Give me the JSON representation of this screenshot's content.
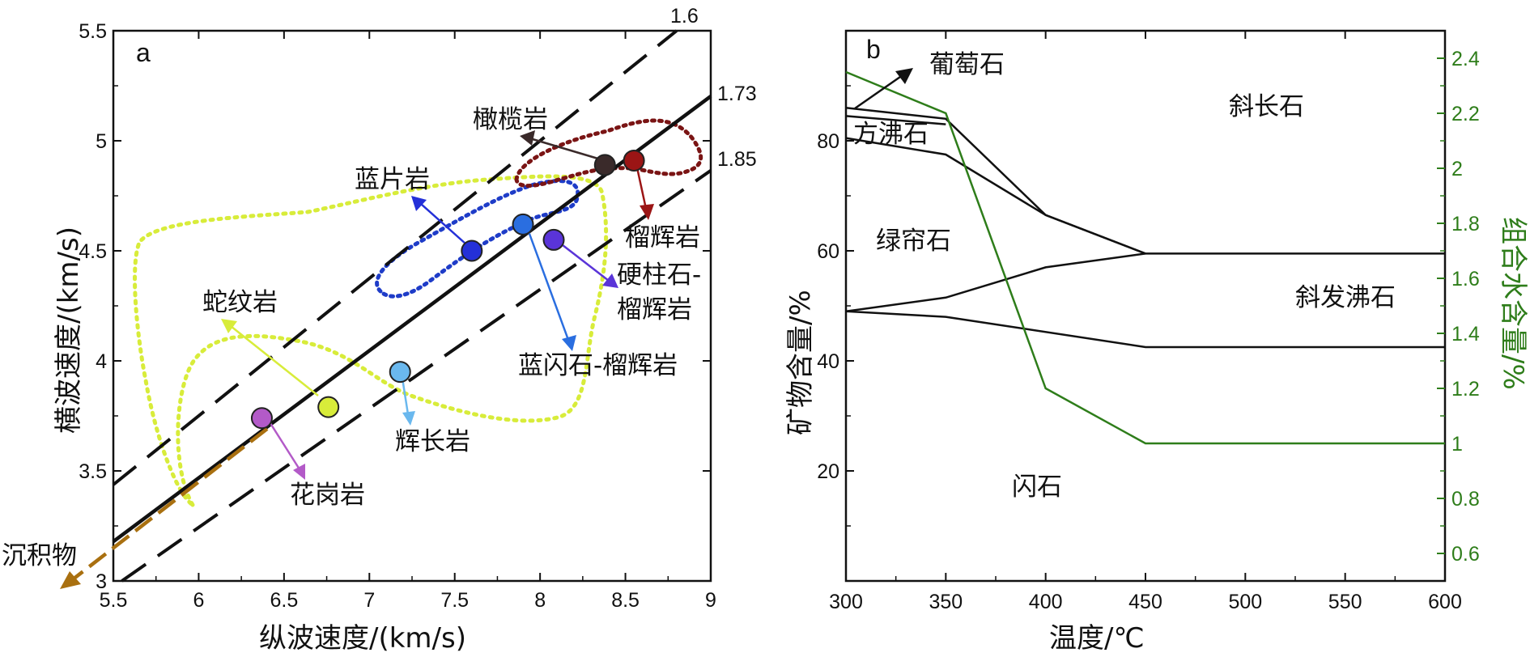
{
  "colors": {
    "axis": "#111111",
    "water_line": "#2e7d1a",
    "peridotite_field": "#7a1414",
    "blueschist_field": "#1e3cc8",
    "serpentinite_field": "#d8ec3a",
    "sediment_arrow": "#a97010"
  },
  "chart_data": [
    {
      "panel": "a",
      "type": "scatter",
      "xlabel": "纵波速度/(km/s)",
      "ylabel": "横波速度/(km/s)",
      "xlim": [
        5.5,
        9
      ],
      "ylim": [
        3,
        5.5
      ],
      "xticks": [
        "5.5",
        "6",
        "6.5",
        "7",
        "7.5",
        "8",
        "8.5",
        "9"
      ],
      "yticks": [
        "3",
        "3.5",
        "4",
        "4.5",
        "5",
        "5.5"
      ],
      "ratio_lines": [
        {
          "label": "1.6",
          "ratio": 1.6,
          "style": "dashed"
        },
        {
          "label": "1.73",
          "ratio": 1.73,
          "style": "solid"
        },
        {
          "label": "1.85",
          "ratio": 1.85,
          "style": "dashed"
        }
      ],
      "points": [
        {
          "name": "橄榄岩",
          "vp": 8.38,
          "vs": 4.89,
          "color": "#3a2a2a"
        },
        {
          "name": "榴辉岩",
          "vp": 8.55,
          "vs": 4.91,
          "color": "#9b1515"
        },
        {
          "name": "蓝片岩",
          "vp": 7.6,
          "vs": 4.5,
          "color": "#2430d8"
        },
        {
          "name": "蓝闪石-榴辉岩",
          "vp": 7.9,
          "vs": 4.62,
          "color": "#2a6ee0"
        },
        {
          "name": "硬柱石-榴辉岩",
          "vp": 8.08,
          "vs": 4.55,
          "color": "#5a34d8"
        },
        {
          "name": "辉长岩",
          "vp": 7.18,
          "vs": 3.95,
          "color": "#6ab8ee"
        },
        {
          "name": "蛇纹岩",
          "vp": 6.76,
          "vs": 3.79,
          "color": "#d8ec3a"
        },
        {
          "name": "花岗岩",
          "vp": 6.37,
          "vs": 3.74,
          "color": "#b35ac8"
        }
      ],
      "labels": {
        "panel": "a",
        "peridotite": "橄榄岩",
        "eclogite": "榴辉岩",
        "blueschist": "蓝片岩",
        "lawsonite_eclogite_line1": "硬柱石-",
        "lawsonite_eclogite_line2": "榴辉岩",
        "glaucophane_eclogite": "蓝闪石-榴辉岩",
        "gabbro": "辉长岩",
        "serpentinite": "蛇纹岩",
        "granite": "花岗岩",
        "sediment": "沉积物"
      }
    },
    {
      "panel": "b",
      "type": "line",
      "xlabel": "温度/℃",
      "ylabel": "矿物含量/%",
      "ylabel_right": "组合水含量/%",
      "xlim": [
        300,
        600
      ],
      "ylim": [
        0,
        100
      ],
      "ylim_right": [
        0.5,
        2.5
      ],
      "xticks": [
        "300",
        "350",
        "400",
        "450",
        "500",
        "550",
        "600"
      ],
      "yticks": [
        "20",
        "40",
        "60",
        "80"
      ],
      "yticks_right": [
        "0.6",
        "0.8",
        "1",
        "1.2",
        "1.4",
        "1.6",
        "1.8",
        "2",
        "2.2",
        "2.4"
      ],
      "boundaries": [
        {
          "x": [
            300,
            350,
            400,
            450,
            600
          ],
          "y": [
            86,
            84,
            66.5,
            59.5,
            59.5
          ]
        },
        {
          "x": [
            300,
            350
          ],
          "y": [
            84.5,
            83
          ]
        },
        {
          "x": [
            300,
            350,
            400,
            450
          ],
          "y": [
            80.5,
            77.5,
            66.5,
            59.5
          ]
        },
        {
          "x": [
            300,
            350,
            400,
            450
          ],
          "y": [
            49,
            51.5,
            57,
            59.5
          ]
        },
        {
          "x": [
            300,
            350,
            450,
            600
          ],
          "y": [
            49,
            48,
            42.5,
            42.5
          ]
        }
      ],
      "water_content": {
        "x": [
          300,
          350,
          400,
          450,
          600
        ],
        "y": [
          2.35,
          2.2,
          1.2,
          1.0,
          1.0
        ]
      },
      "field_labels": {
        "panel": "b",
        "prehnite": "葡萄石",
        "zeolite": "方沸石",
        "plagioclase": "斜长石",
        "epidote": "绿帘石",
        "laumontite": "斜发沸石",
        "amphibole": "闪石"
      }
    }
  ]
}
